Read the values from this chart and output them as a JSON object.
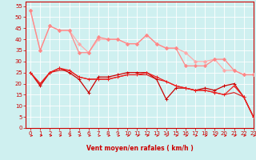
{
  "title": "",
  "xlabel": "Vent moyen/en rafales ( km/h )",
  "ylabel": "",
  "background_color": "#cff0f0",
  "grid_color": "#ffffff",
  "xlim": [
    -0.5,
    23
  ],
  "ylim": [
    0,
    57
  ],
  "yticks": [
    0,
    5,
    10,
    15,
    20,
    25,
    30,
    35,
    40,
    45,
    50,
    55
  ],
  "xticks": [
    0,
    1,
    2,
    3,
    4,
    5,
    6,
    7,
    8,
    9,
    10,
    11,
    12,
    13,
    14,
    15,
    16,
    17,
    18,
    19,
    20,
    21,
    22,
    23
  ],
  "series": [
    {
      "x": [
        0,
        1,
        2,
        3,
        4,
        5,
        6,
        7,
        8,
        9,
        10,
        11,
        12,
        13,
        14,
        15,
        16,
        17,
        18,
        19,
        20,
        21,
        22,
        23
      ],
      "y": [
        53,
        35,
        46,
        44,
        44,
        38,
        34,
        40,
        40,
        40,
        38,
        38,
        42,
        38,
        36,
        36,
        34,
        30,
        30,
        31,
        26,
        26,
        24,
        24
      ],
      "color": "#ffaaaa",
      "lw": 0.9,
      "marker": "D",
      "ms": 2.0
    },
    {
      "x": [
        0,
        1,
        2,
        3,
        4,
        5,
        6,
        7,
        8,
        9,
        10,
        11,
        12,
        13,
        14,
        15,
        16,
        17,
        18,
        19,
        20,
        21,
        22,
        23
      ],
      "y": [
        53,
        35,
        46,
        44,
        44,
        34,
        34,
        41,
        40,
        40,
        38,
        38,
        42,
        38,
        36,
        36,
        28,
        28,
        28,
        31,
        31,
        26,
        24,
        24
      ],
      "color": "#ff8888",
      "lw": 0.9,
      "marker": "D",
      "ms": 2.0
    },
    {
      "x": [
        0,
        1,
        2,
        3,
        4,
        5,
        6,
        7,
        8,
        9,
        10,
        11,
        12,
        13,
        14,
        15,
        16,
        17,
        18,
        19,
        20,
        21,
        22,
        23
      ],
      "y": [
        25,
        19,
        25,
        27,
        25,
        22,
        16,
        23,
        23,
        24,
        25,
        25,
        25,
        22,
        13,
        18,
        18,
        17,
        18,
        17,
        19,
        20,
        14,
        5
      ],
      "color": "#cc0000",
      "lw": 0.9,
      "marker": "+",
      "ms": 3.0
    },
    {
      "x": [
        0,
        1,
        2,
        3,
        4,
        5,
        6,
        7,
        8,
        9,
        10,
        11,
        12,
        13,
        14,
        15,
        16,
        17,
        18,
        19,
        20,
        21,
        22,
        23
      ],
      "y": [
        25,
        20,
        25,
        27,
        26,
        23,
        22,
        22,
        22,
        23,
        24,
        24,
        25,
        23,
        21,
        19,
        18,
        17,
        17,
        16,
        15,
        19,
        14,
        5
      ],
      "color": "#ee2222",
      "lw": 0.9,
      "marker": "+",
      "ms": 3.0
    },
    {
      "x": [
        0,
        1,
        2,
        3,
        4,
        5,
        6,
        7,
        8,
        9,
        10,
        11,
        12,
        13,
        14,
        15,
        16,
        17,
        18,
        19,
        20,
        21,
        22,
        23
      ],
      "y": [
        25,
        20,
        25,
        26,
        26,
        23,
        22,
        22,
        22,
        23,
        24,
        24,
        24,
        22,
        21,
        19,
        18,
        17,
        17,
        16,
        15,
        16,
        14,
        5
      ],
      "color": "#dd1111",
      "lw": 0.8,
      "marker": null,
      "ms": 0
    }
  ],
  "arrow_color": "#dd0000",
  "xlabel_color": "#cc0000",
  "xlabel_fontsize": 5.5,
  "tick_fontsize": 5.0,
  "tick_color": "#cc0000",
  "spine_color": "#cc0000"
}
